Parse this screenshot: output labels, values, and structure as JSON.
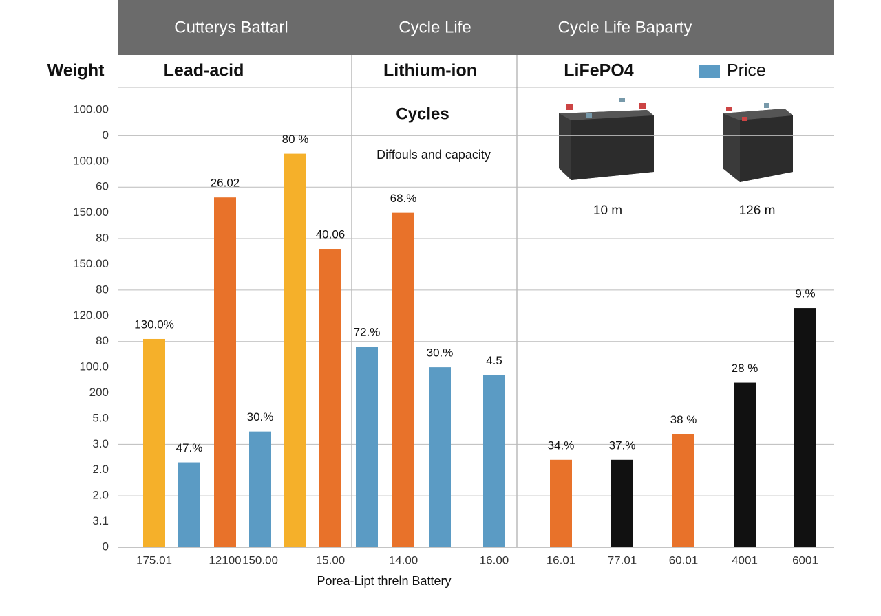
{
  "header": [
    "Cutterys Battarl",
    "Cycle Life",
    "Cycle Life Baparty"
  ],
  "row_label": "Weight",
  "groups": [
    "Lead-acid",
    "Lithium-ion",
    "LiFePO4"
  ],
  "legend": {
    "label": "Price",
    "color": "#5b9bc4"
  },
  "notes": [
    "Cycles",
    "Diffouls and capacity"
  ],
  "battery_captions": [
    "10 m",
    "126 m"
  ],
  "chart_data": {
    "type": "bar",
    "xlabel": "Porea-Lipt threln Battery",
    "categories": [
      "175.01",
      null,
      "12100",
      "150.00",
      null,
      "15.00",
      null,
      "14.00",
      null,
      "16.00",
      "16.01",
      "77.01",
      "60.01",
      "4001",
      "6001"
    ],
    "values": [
      8.1,
      3.3,
      13.6,
      4.5,
      15.3,
      11.6,
      7.8,
      13.0,
      7.0,
      6.7,
      3.4,
      3.4,
      4.4,
      6.4,
      9.3
    ],
    "bar_labels": [
      "130.0%",
      "47.%",
      "26.02",
      "30.%",
      "80 %",
      "40.06",
      "72.%",
      "68.%",
      "30.%",
      "4.5",
      "34.%",
      "37.%",
      "38 %",
      "28 %",
      "9.%"
    ],
    "colors": [
      "#f5b02a",
      "#5b9bc4",
      "#e8722a",
      "#5b9bc4",
      "#f5b02a",
      "#e8722a",
      "#5b9bc4",
      "#e8722a",
      "#5b9bc4",
      "#5b9bc4",
      "#e8722a",
      "#111111",
      "#e8722a",
      "#111111",
      "#111111"
    ],
    "ylim": [
      0,
      17
    ],
    "yticks": [
      {
        "value": 17,
        "label": "100.00"
      },
      {
        "value": 16,
        "label": "0"
      },
      {
        "value": 15,
        "label": "100.00"
      },
      {
        "value": 14,
        "label": "60"
      },
      {
        "value": 13,
        "label": "150.00"
      },
      {
        "value": 12,
        "label": "80"
      },
      {
        "value": 11,
        "label": "150.00"
      },
      {
        "value": 10,
        "label": "80"
      },
      {
        "value": 9,
        "label": "120.00"
      },
      {
        "value": 8,
        "label": "80"
      },
      {
        "value": 7,
        "label": "100.0"
      },
      {
        "value": 6,
        "label": "200"
      },
      {
        "value": 5,
        "label": "5.0"
      },
      {
        "value": 4,
        "label": "3.0"
      },
      {
        "value": 3,
        "label": "2.0"
      },
      {
        "value": 2,
        "label": "2.0"
      },
      {
        "value": 1,
        "label": "3.1"
      },
      0
    ]
  }
}
